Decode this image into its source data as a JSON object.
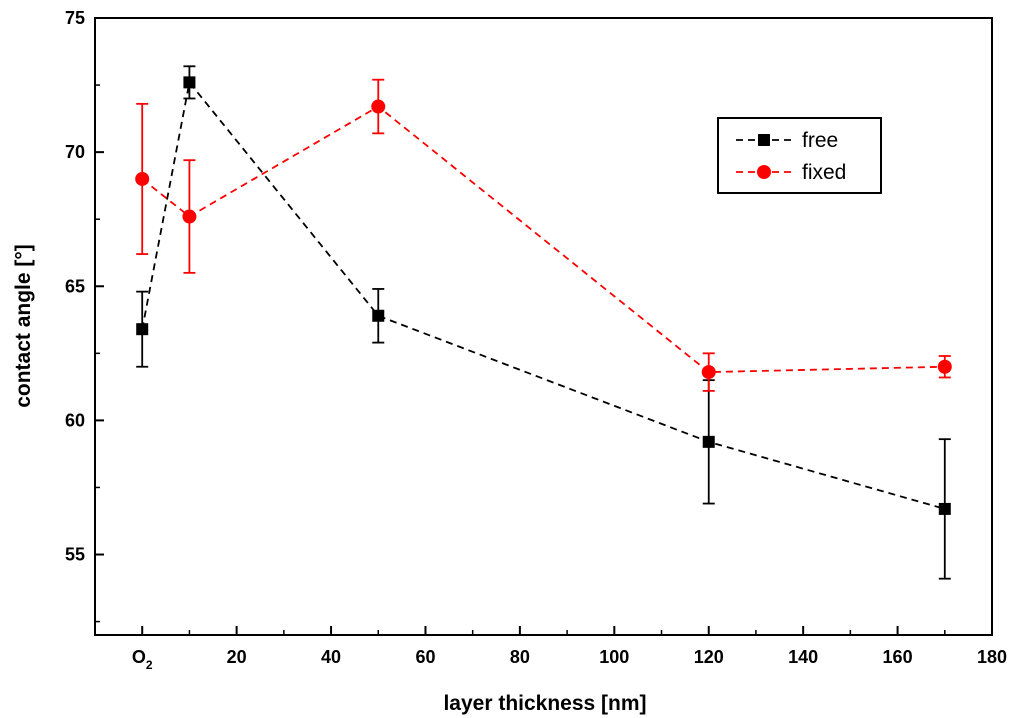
{
  "chart_data": {
    "type": "scatter",
    "title": "",
    "xlabel": "layer thickness [nm]",
    "ylabel": "contact angle [°]",
    "xlim": [
      -10,
      180
    ],
    "ylim": [
      52,
      75
    ],
    "grid": false,
    "legend_position": "top-right",
    "x_ticks": [
      {
        "value": 0,
        "label": "O",
        "sub": "2"
      },
      {
        "value": 20,
        "label": "20",
        "sub": ""
      },
      {
        "value": 40,
        "label": "40",
        "sub": ""
      },
      {
        "value": 60,
        "label": "60",
        "sub": ""
      },
      {
        "value": 80,
        "label": "80",
        "sub": ""
      },
      {
        "value": 100,
        "label": "100",
        "sub": ""
      },
      {
        "value": 120,
        "label": "120",
        "sub": ""
      },
      {
        "value": 140,
        "label": "140",
        "sub": ""
      },
      {
        "value": 160,
        "label": "160",
        "sub": ""
      },
      {
        "value": 180,
        "label": "180",
        "sub": ""
      }
    ],
    "y_ticks": [
      55,
      60,
      65,
      70,
      75
    ],
    "series": [
      {
        "name": "free",
        "color": "#000000",
        "marker": "square",
        "x": [
          0,
          10,
          50,
          120,
          170
        ],
        "y": [
          63.4,
          72.6,
          63.9,
          59.2,
          56.7
        ],
        "err": [
          1.4,
          0.6,
          1.0,
          2.3,
          2.6
        ]
      },
      {
        "name": "fixed",
        "color": "#ff0000",
        "marker": "circle",
        "x": [
          0,
          10,
          50,
          120,
          170
        ],
        "y": [
          69.0,
          67.6,
          71.7,
          61.8,
          62.0
        ],
        "err": [
          2.8,
          2.1,
          1.0,
          0.7,
          0.4
        ]
      }
    ]
  }
}
